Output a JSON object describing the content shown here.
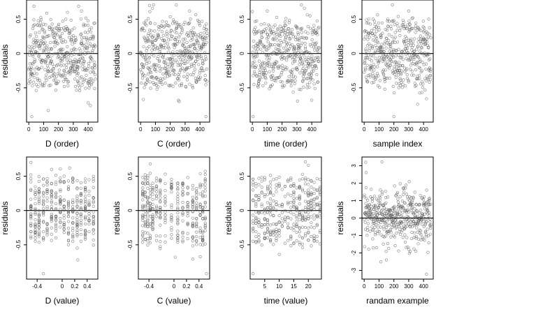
{
  "chart_data": [
    {
      "type": "scatter",
      "xlabel": "D (order)",
      "ylabel": "residuals",
      "xlim": [
        -15,
        465
      ],
      "ylim": [
        -1.0,
        0.78
      ],
      "xticks": [
        0,
        100,
        200,
        300,
        400
      ],
      "yticks": [
        -0.5,
        0,
        0.5
      ],
      "hline": 0,
      "x_kind": "index",
      "n": 460,
      "seed": 11,
      "dist": "uniform",
      "spread": 0.55,
      "points": [
        [
          130,
          -0.83
        ],
        [
          20,
          -0.92
        ],
        [
          400,
          -0.72
        ],
        [
          415,
          -0.76
        ],
        [
          35,
          0.69
        ],
        [
          355,
          0.62
        ],
        [
          260,
          0.6
        ]
      ]
    },
    {
      "type": "scatter",
      "xlabel": "C (order)",
      "ylabel": "residuals",
      "xlim": [
        -15,
        465
      ],
      "ylim": [
        -1.0,
        0.78
      ],
      "xticks": [
        0,
        100,
        200,
        300,
        400
      ],
      "yticks": [
        -0.5,
        0,
        0.5
      ],
      "hline": 0,
      "x_kind": "index",
      "n": 460,
      "seed": 23,
      "dist": "uniform",
      "spread": 0.55,
      "points": [
        [
          440,
          -0.92
        ],
        [
          260,
          -0.7
        ],
        [
          60,
          0.7
        ],
        [
          80,
          0.66
        ],
        [
          330,
          0.62
        ]
      ]
    },
    {
      "type": "scatter",
      "xlabel": "time (order)",
      "ylabel": "residuals",
      "xlim": [
        -15,
        465
      ],
      "ylim": [
        -1.0,
        0.78
      ],
      "xticks": [
        0,
        100,
        200,
        300,
        400
      ],
      "yticks": [
        -0.5,
        0,
        0.5
      ],
      "hline": 0,
      "x_kind": "index",
      "n": 460,
      "seed": 37,
      "dist": "uniform",
      "spread": 0.55,
      "points": [
        [
          5,
          -0.92
        ],
        [
          400,
          -0.68
        ],
        [
          330,
          0.72
        ],
        [
          350,
          0.66
        ],
        [
          100,
          0.62
        ]
      ]
    },
    {
      "type": "scatter",
      "xlabel": "sample index",
      "ylabel": "residuals",
      "xlim": [
        -15,
        465
      ],
      "ylim": [
        -1.0,
        0.78
      ],
      "xticks": [
        0,
        100,
        200,
        300,
        400
      ],
      "yticks": [
        -0.5,
        0,
        0.5
      ],
      "hline": 0,
      "x_kind": "index",
      "n": 460,
      "seed": 41,
      "dist": "uniform",
      "spread": 0.55,
      "points": [
        [
          200,
          -0.92
        ],
        [
          360,
          -0.74
        ],
        [
          420,
          -0.66
        ],
        [
          190,
          0.72
        ],
        [
          300,
          0.62
        ]
      ]
    },
    {
      "type": "scatter",
      "xlabel": "D (value)",
      "ylabel": "residuals",
      "xlim": [
        -0.57,
        0.57
      ],
      "ylim": [
        -1.0,
        0.78
      ],
      "xticks": [
        -0.4,
        0,
        0.2,
        0.4
      ],
      "yticks": [
        -0.5,
        0,
        0.5
      ],
      "hline": 0,
      "x_kind": "columns",
      "columns": [
        -0.5,
        -0.43,
        -0.37,
        -0.3,
        -0.24,
        -0.17,
        -0.1,
        -0.03,
        0.03,
        0.1,
        0.17,
        0.24,
        0.3,
        0.37,
        0.43,
        0.5
      ],
      "n": 380,
      "seed": 53,
      "dist": "uniform",
      "spread": 0.55,
      "points": [
        [
          -0.3,
          -0.92
        ],
        [
          0.25,
          -0.72
        ],
        [
          -0.5,
          0.7
        ],
        [
          0.12,
          0.62
        ]
      ]
    },
    {
      "type": "scatter",
      "xlabel": "C (value)",
      "ylabel": "residuals",
      "xlim": [
        -0.57,
        0.57
      ],
      "ylim": [
        -1.0,
        0.78
      ],
      "xticks": [
        -0.4,
        0,
        0.2,
        0.4
      ],
      "yticks": [
        -0.5,
        0,
        0.5
      ],
      "hline": 0,
      "x_kind": "columns",
      "columns": [
        -0.5,
        -0.46,
        -0.42,
        -0.38,
        -0.34,
        -0.28,
        -0.22,
        -0.14,
        -0.04,
        0.06,
        0.14,
        0.22,
        0.3,
        0.36,
        0.42,
        0.46,
        0.5
      ],
      "n": 380,
      "seed": 67,
      "dist": "uniform",
      "spread": 0.55,
      "points": [
        [
          0.52,
          -0.92
        ],
        [
          -0.38,
          0.68
        ],
        [
          0.02,
          -0.68
        ]
      ]
    },
    {
      "type": "scatter",
      "xlabel": "time (value)",
      "ylabel": "residuals",
      "xlim": [
        0,
        24.5
      ],
      "ylim": [
        -1.0,
        0.78
      ],
      "xticks": [
        5,
        10,
        15,
        20
      ],
      "yticks": [
        -0.5,
        0,
        0.5
      ],
      "hline": 0,
      "x_kind": "columns",
      "columns": [
        1,
        2,
        3,
        4,
        5,
        6,
        7,
        8,
        9,
        10,
        11,
        12,
        13,
        14,
        15,
        16,
        17,
        18,
        19,
        20,
        21,
        22,
        23,
        24
      ],
      "n": 380,
      "seed": 79,
      "dist": "uniform",
      "spread": 0.55,
      "points": [
        [
          1,
          -0.92
        ],
        [
          19,
          0.72
        ],
        [
          20,
          0.66
        ],
        [
          10,
          -0.64
        ]
      ]
    },
    {
      "type": "scatter",
      "xlabel": "randam example",
      "ylabel": "residuals",
      "xlim": [
        -15,
        465
      ],
      "ylim": [
        -3.5,
        3.5
      ],
      "xticks": [
        0,
        100,
        200,
        300,
        400
      ],
      "yticks": [
        -3,
        -2,
        -1,
        0,
        1,
        2,
        3
      ],
      "hline": 0,
      "x_kind": "index",
      "n": 460,
      "seed": 97,
      "dist": "normal",
      "spread": 0.85,
      "points": [
        [
          10,
          3.2
        ],
        [
          120,
          3.25
        ],
        [
          420,
          -3.3
        ],
        [
          150,
          -2.4
        ]
      ]
    }
  ]
}
